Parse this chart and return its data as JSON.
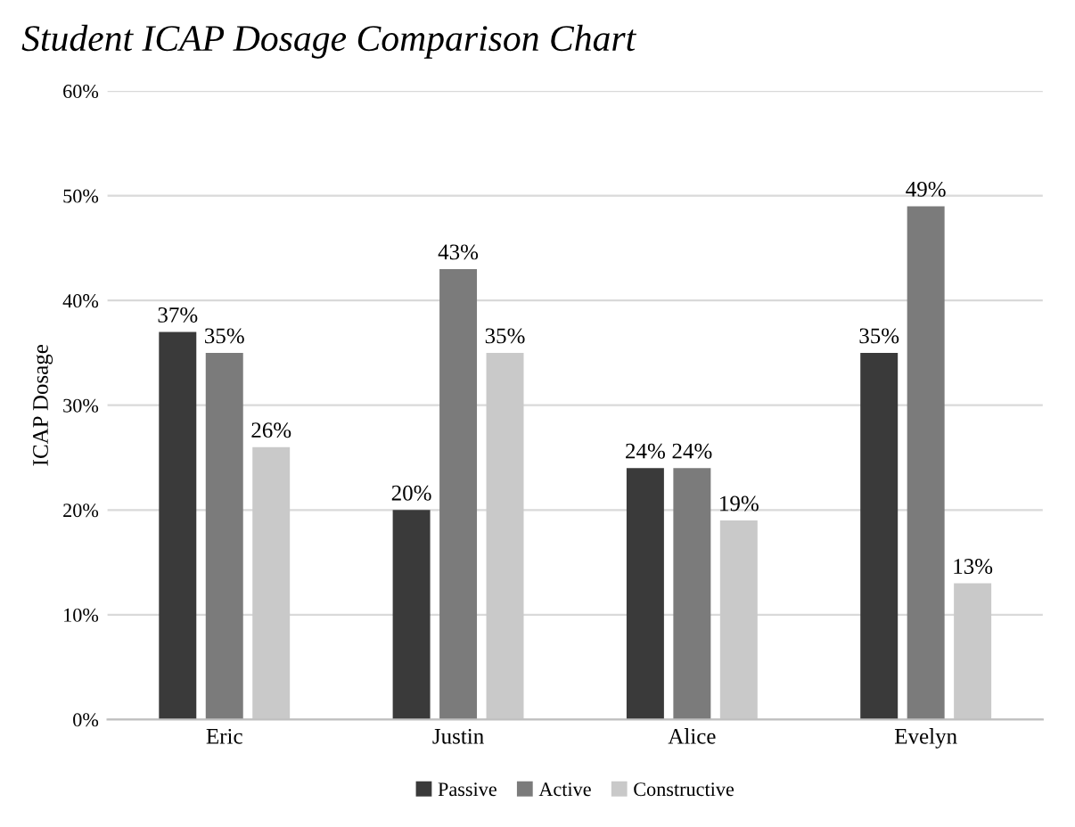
{
  "chart_data": {
    "type": "bar",
    "title": "Student ICAP Dosage Comparison Chart",
    "ylabel": "ICAP Dosage",
    "categories": [
      "Eric",
      "Justin",
      "Alice",
      "Evelyn"
    ],
    "series": [
      {
        "name": "Passive",
        "color": "#3a3a3a",
        "values": [
          37,
          20,
          24,
          35
        ],
        "value_labels": [
          "37%",
          "20%",
          "24%",
          "35%"
        ]
      },
      {
        "name": "Active",
        "color": "#7b7b7b",
        "values": [
          35,
          43,
          24,
          49
        ],
        "value_labels": [
          "35%",
          "43%",
          "24%",
          "49%"
        ]
      },
      {
        "name": "Constructive",
        "color": "#c9c9c9",
        "values": [
          26,
          35,
          19,
          13
        ],
        "value_labels": [
          "26%",
          "35%",
          "19%",
          "13%"
        ]
      }
    ],
    "ylim": [
      0,
      60
    ],
    "yticks": [
      {
        "value": 0,
        "label": "0%"
      },
      {
        "value": 10,
        "label": "10%"
      },
      {
        "value": 20,
        "label": "20%"
      },
      {
        "value": 30,
        "label": "30%"
      },
      {
        "value": 40,
        "label": "40%"
      },
      {
        "value": 50,
        "label": "50%"
      },
      {
        "value": 60,
        "label": "60%"
      }
    ],
    "grid": "y",
    "legend": "bottom"
  }
}
